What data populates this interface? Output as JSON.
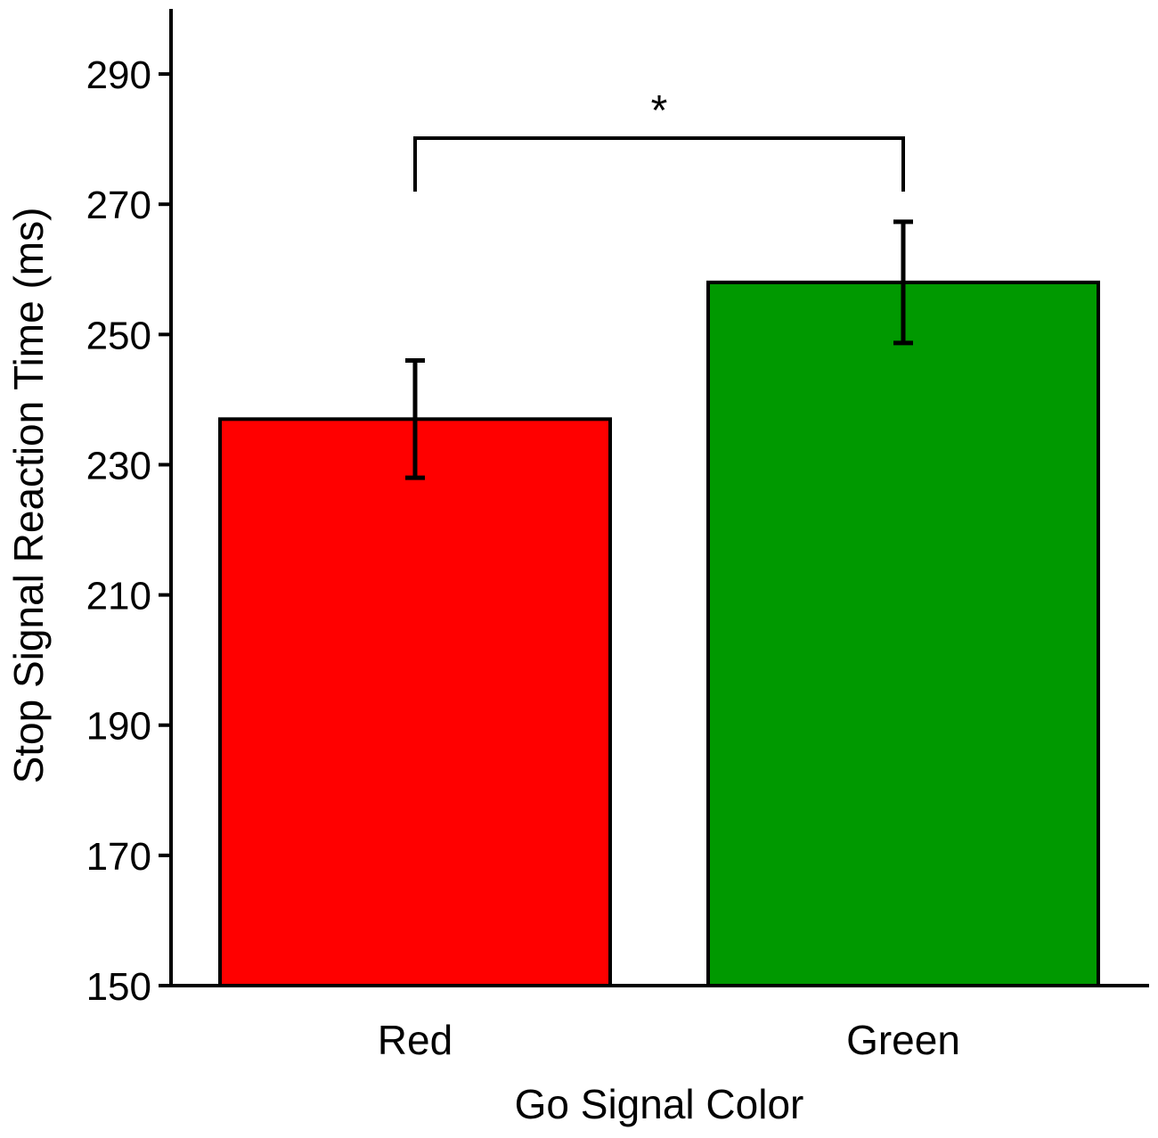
{
  "chart_data": {
    "type": "bar",
    "categories": [
      "Red",
      "Green"
    ],
    "series": [
      {
        "values": [
          237,
          258
        ],
        "error": [
          9,
          9.3
        ],
        "colors": [
          "#ff0000",
          "#009900"
        ]
      }
    ],
    "xlabel": "Go Signal Color",
    "ylabel": "Stop Signal Reaction Time (ms)",
    "ylim": [
      150,
      300
    ],
    "yticks": [
      150,
      170,
      190,
      210,
      230,
      250,
      270,
      290
    ],
    "ytick_labels": [
      "150",
      "170",
      "190",
      "210",
      "230",
      "250",
      "270",
      "290"
    ],
    "grid": false,
    "significance": {
      "between": [
        "Red",
        "Green"
      ],
      "label": "*"
    }
  }
}
